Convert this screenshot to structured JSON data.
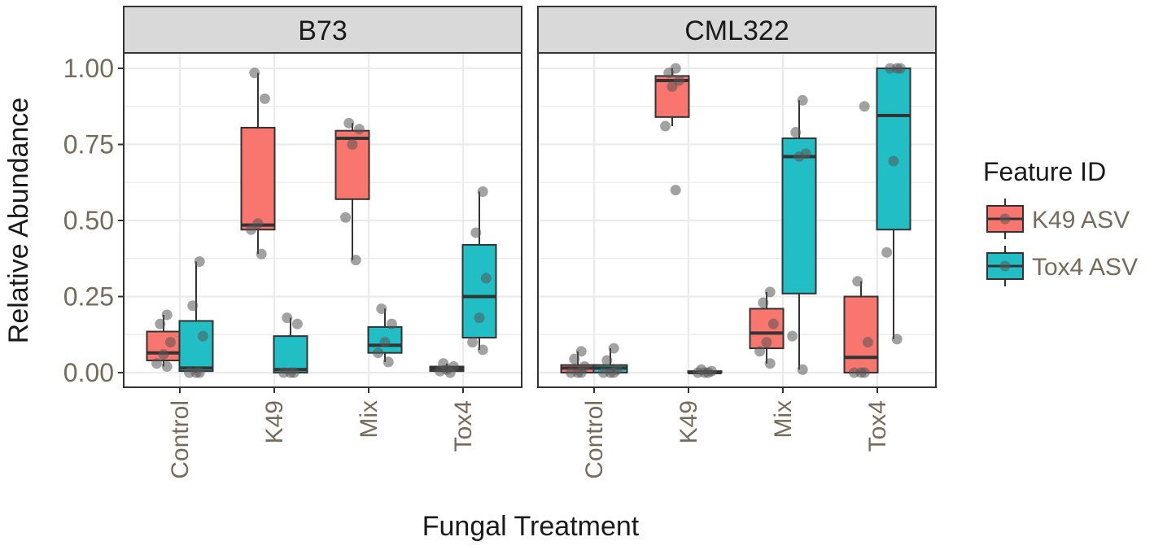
{
  "colors": {
    "k49": "#f8766d",
    "tox4": "#22bec5",
    "strip_bg": "#d9d9d9",
    "grid": "#ebebeb",
    "frame": "#333333",
    "points": "#555555"
  },
  "chart_data": {
    "type": "boxplot",
    "xlabel": "Fungal Treatment",
    "ylabel": "Relative Abundance",
    "ylim": [
      -0.03,
      1.05
    ],
    "yticks": [
      "0.00",
      "0.25",
      "0.50",
      "0.75",
      "1.00"
    ],
    "categories": [
      "Control",
      "K49",
      "Mix",
      "Tox4"
    ],
    "legend": {
      "title": "Feature ID",
      "entries": [
        "K49 ASV",
        "Tox4 ASV"
      ],
      "placement": "right"
    },
    "panels": [
      {
        "name": "B73",
        "series": [
          {
            "name": "K49 ASV",
            "boxes": [
              {
                "category": "Control",
                "q1": 0.04,
                "median": 0.065,
                "q3": 0.135,
                "lower": 0.02,
                "upper": 0.19,
                "points": [
                  0.02,
                  0.03,
                  0.06,
                  0.1,
                  0.16,
                  0.19
                ]
              },
              {
                "category": "K49",
                "q1": 0.47,
                "median": 0.485,
                "q3": 0.805,
                "lower": 0.39,
                "upper": 0.985,
                "points": [
                  0.39,
                  0.47,
                  0.49,
                  0.9,
                  0.985
                ]
              },
              {
                "category": "Mix",
                "q1": 0.57,
                "median": 0.77,
                "q3": 0.795,
                "lower": 0.37,
                "upper": 0.82,
                "points": [
                  0.37,
                  0.51,
                  0.75,
                  0.8,
                  0.82
                ]
              },
              {
                "category": "Tox4",
                "q1": 0.005,
                "median": 0.013,
                "q3": 0.02,
                "lower": 0.0,
                "upper": 0.03,
                "points": [
                  0.0,
                  0.005,
                  0.01,
                  0.02,
                  0.03
                ]
              }
            ]
          },
          {
            "name": "Tox4 ASV",
            "boxes": [
              {
                "category": "Control",
                "q1": 0.005,
                "median": 0.015,
                "q3": 0.17,
                "lower": 0.0,
                "upper": 0.365,
                "points": [
                  0.0,
                  0.0,
                  0.0,
                  0.12,
                  0.22,
                  0.365
                ]
              },
              {
                "category": "K49",
                "q1": 0.0,
                "median": 0.01,
                "q3": 0.12,
                "lower": 0.0,
                "upper": 0.18,
                "points": [
                  0.0,
                  0.0,
                  0.0,
                  0.16,
                  0.18
                ]
              },
              {
                "category": "Mix",
                "q1": 0.065,
                "median": 0.09,
                "q3": 0.15,
                "lower": 0.035,
                "upper": 0.21,
                "points": [
                  0.035,
                  0.065,
                  0.1,
                  0.16,
                  0.21
                ]
              },
              {
                "category": "Tox4",
                "q1": 0.115,
                "median": 0.25,
                "q3": 0.42,
                "lower": 0.075,
                "upper": 0.595,
                "points": [
                  0.075,
                  0.1,
                  0.18,
                  0.31,
                  0.46,
                  0.595
                ]
              }
            ]
          }
        ]
      },
      {
        "name": "CML322",
        "series": [
          {
            "name": "K49 ASV",
            "boxes": [
              {
                "category": "Control",
                "q1": 0.0,
                "median": 0.015,
                "q3": 0.025,
                "lower": 0.0,
                "upper": 0.07,
                "points": [
                  0.0,
                  0.0,
                  0.0,
                  0.02,
                  0.045,
                  0.07
                ]
              },
              {
                "category": "K49",
                "q1": 0.84,
                "median": 0.96,
                "q3": 0.975,
                "lower": 0.81,
                "upper": 1.0,
                "points": [
                  0.6,
                  0.81,
                  0.94,
                  0.96,
                  0.985,
                  1.0
                ]
              },
              {
                "category": "Mix",
                "q1": 0.08,
                "median": 0.13,
                "q3": 0.21,
                "lower": 0.03,
                "upper": 0.265,
                "points": [
                  0.03,
                  0.07,
                  0.1,
                  0.16,
                  0.23,
                  0.265
                ]
              },
              {
                "category": "Tox4",
                "q1": 0.0,
                "median": 0.05,
                "q3": 0.25,
                "lower": 0.0,
                "upper": 0.3,
                "points": [
                  0.0,
                  0.0,
                  0.0,
                  0.1,
                  0.3,
                  0.875
                ]
              }
            ]
          },
          {
            "name": "Tox4 ASV",
            "boxes": [
              {
                "category": "Control",
                "q1": 0.0,
                "median": 0.015,
                "q3": 0.025,
                "lower": 0.0,
                "upper": 0.08,
                "points": [
                  0.0,
                  0.0,
                  0.0,
                  0.01,
                  0.04,
                  0.08
                ]
              },
              {
                "category": "K49",
                "q1": 0.0,
                "median": 0.0,
                "q3": 0.005,
                "lower": 0.0,
                "upper": 0.01,
                "points": [
                  0.0,
                  0.0,
                  0.0,
                  0.005,
                  0.01
                ]
              },
              {
                "category": "Mix",
                "q1": 0.26,
                "median": 0.71,
                "q3": 0.77,
                "lower": 0.01,
                "upper": 0.895,
                "points": [
                  0.01,
                  0.12,
                  0.71,
                  0.72,
                  0.79,
                  0.895
                ]
              },
              {
                "category": "Tox4",
                "q1": 0.47,
                "median": 0.845,
                "q3": 1.0,
                "lower": 0.11,
                "upper": 1.0,
                "points": [
                  0.11,
                  0.395,
                  0.695,
                  1.0,
                  1.0,
                  1.0
                ]
              }
            ]
          }
        ]
      }
    ]
  }
}
